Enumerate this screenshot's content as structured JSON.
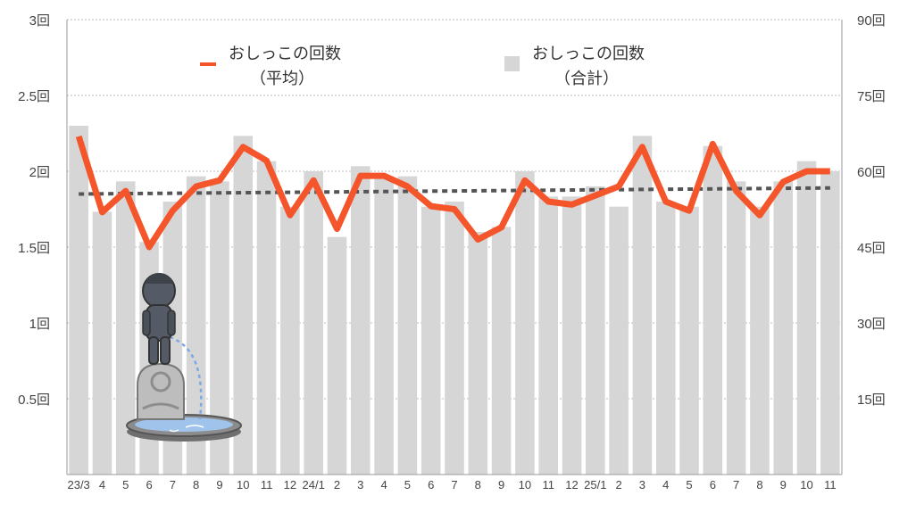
{
  "chart_data": {
    "type": "bar+line",
    "title": "",
    "categories": [
      "23/3",
      "4",
      "5",
      "6",
      "7",
      "8",
      "9",
      "10",
      "11",
      "12",
      "24/1",
      "2",
      "3",
      "4",
      "5",
      "6",
      "7",
      "8",
      "9",
      "10",
      "11",
      "12",
      "25/1",
      "2",
      "3",
      "4",
      "5",
      "6",
      "7",
      "8",
      "9",
      "10",
      "11"
    ],
    "series": [
      {
        "name": "おしっこの回数（合計）",
        "axis": "right",
        "kind": "bar",
        "color": "#d6d6d6",
        "values": [
          69,
          52,
          58,
          46,
          54,
          59,
          58,
          67,
          62,
          53,
          60,
          47,
          61,
          59,
          59,
          53,
          54,
          48,
          49,
          60,
          55,
          55,
          57,
          53,
          67,
          54,
          53,
          65,
          58,
          53,
          58,
          62,
          60
        ]
      },
      {
        "name": "おしっこの回数（平均）",
        "axis": "left",
        "kind": "line",
        "color": "#f4552a",
        "values": [
          2.23,
          1.73,
          1.87,
          1.5,
          1.74,
          1.9,
          1.94,
          2.16,
          2.07,
          1.71,
          1.94,
          1.62,
          1.97,
          1.97,
          1.9,
          1.77,
          1.75,
          1.55,
          1.63,
          1.94,
          1.8,
          1.78,
          1.84,
          1.9,
          2.16,
          1.8,
          1.74,
          2.18,
          1.87,
          1.71,
          1.93,
          2.0,
          2.0
        ]
      }
    ],
    "trendline": {
      "of": "おしっこの回数（平均）",
      "style": "dotted",
      "color": "#555555",
      "start": 1.85,
      "end": 1.89
    },
    "left_axis": {
      "ylim": [
        0,
        3
      ],
      "ticks": [
        "0.5回",
        "1回",
        "1.5回",
        "2回",
        "2.5回",
        "3回"
      ],
      "tick_values": [
        0.5,
        1,
        1.5,
        2,
        2.5,
        3
      ]
    },
    "right_axis": {
      "ylim": [
        0,
        90
      ],
      "ticks": [
        "15回",
        "30回",
        "45回",
        "60回",
        "75回",
        "90回"
      ],
      "tick_values": [
        15,
        30,
        45,
        60,
        75,
        90
      ]
    },
    "grid": true,
    "legend": {
      "placement": "top",
      "items": [
        {
          "line1": "おしっこの回数",
          "line2": "（平均）",
          "marker": "line",
          "color": "#f4552a"
        },
        {
          "line1": "おしっこの回数",
          "line2": "（合計）",
          "marker": "square",
          "color": "#d6d6d6"
        }
      ]
    },
    "illustration": "manneken-pis-fountain-icon"
  }
}
